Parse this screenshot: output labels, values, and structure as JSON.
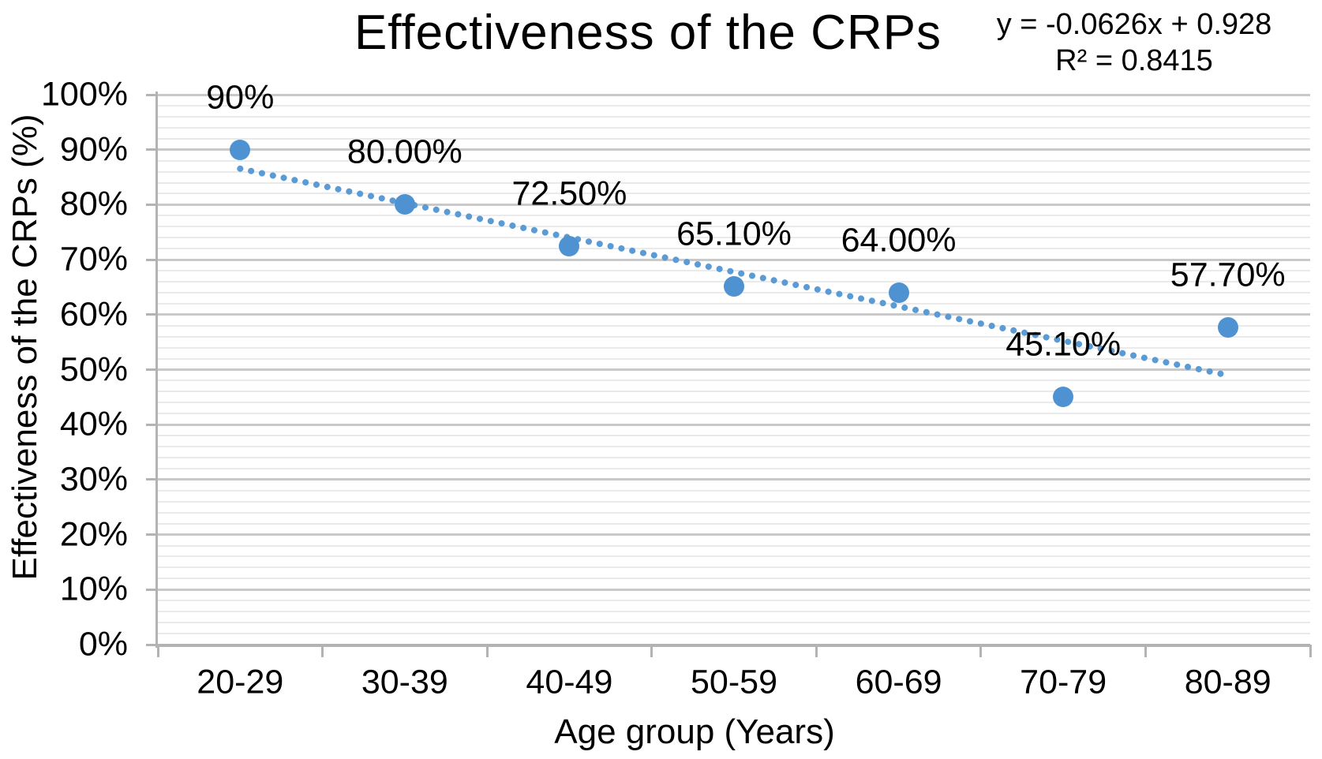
{
  "chart_data": {
    "type": "scatter",
    "title": "Effectiveness of the CRPs",
    "xlabel": "Age group (Years)",
    "ylabel": "Effectiveness of the CRPs (%)",
    "categories": [
      "20-29",
      "30-39",
      "40-49",
      "50-59",
      "60-69",
      "70-79",
      "80-89"
    ],
    "series": [
      {
        "name": "Effectiveness of the CRPs",
        "values": [
          0.9,
          0.8,
          0.725,
          0.651,
          0.64,
          0.451,
          0.577
        ],
        "point_labels": [
          "90%",
          "80.00%",
          "72.50%",
          "65.10%",
          "64.00%",
          "45.10%",
          "57.70%"
        ]
      }
    ],
    "ylim": [
      0,
      1
    ],
    "ytick_labels": [
      "0%",
      "10%",
      "20%",
      "30%",
      "40%",
      "50%",
      "60%",
      "70%",
      "80%",
      "90%",
      "100%"
    ],
    "ytick_step": 0.1,
    "minor_grid_step": 0.02,
    "grid": true,
    "legend": "none",
    "trendline": {
      "type": "linear",
      "slope": -0.0626,
      "intercept": 0.928,
      "r_squared": 0.8415,
      "equation_text": "y = -0.0626x + 0.928",
      "r2_text": "R² = 0.8415",
      "style": "dotted"
    },
    "colors": {
      "marker": "#4e92d2",
      "trendline": "#5b9bd5",
      "major_grid": "#c9c9c9",
      "minor_grid": "#eaeaea",
      "axis": "#b3b3b3",
      "text": "#000000",
      "background": "#ffffff"
    }
  }
}
